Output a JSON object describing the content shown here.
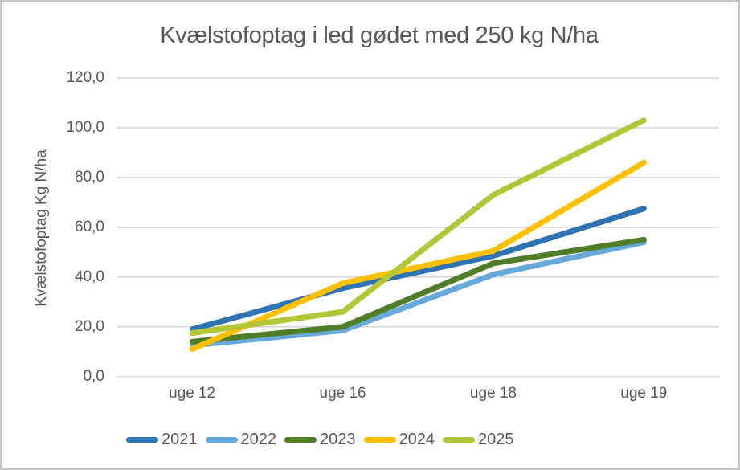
{
  "chart_data": {
    "type": "line",
    "title": "Kvælstofoptag i led gødet med 250 kg N/ha",
    "ylabel": "Kvælstofoptag Kg N/ha",
    "xlabel": "",
    "categories": [
      "uge 12",
      "uge 16",
      "uge 18",
      "uge 19"
    ],
    "series": [
      {
        "name": "2021",
        "color": "#2E74B5",
        "values": [
          19,
          35.5,
          48.5,
          67.5
        ]
      },
      {
        "name": "2022",
        "color": "#68A9DC",
        "values": [
          12.5,
          18.5,
          41,
          54
        ]
      },
      {
        "name": "2023",
        "color": "#507D27",
        "values": [
          14,
          20,
          45.5,
          55
        ]
      },
      {
        "name": "2024",
        "color": "#FFC000",
        "values": [
          11,
          37.5,
          50.5,
          86
        ]
      },
      {
        "name": "2025",
        "color": "#B2C637",
        "values": [
          17.5,
          26,
          73,
          103
        ]
      }
    ],
    "ylim": [
      0,
      120
    ],
    "ytick_step": 20,
    "ytick_labels": [
      "0,0",
      "20,0",
      "40,0",
      "60,0",
      "80,0",
      "100,0",
      "120,0"
    ],
    "grid": true,
    "legend_position": "bottom",
    "colors": {
      "text": "#595959",
      "gridline": "#D9D9D9",
      "frame_border": "#C6C6C6",
      "background": "#FFFFFF"
    }
  }
}
